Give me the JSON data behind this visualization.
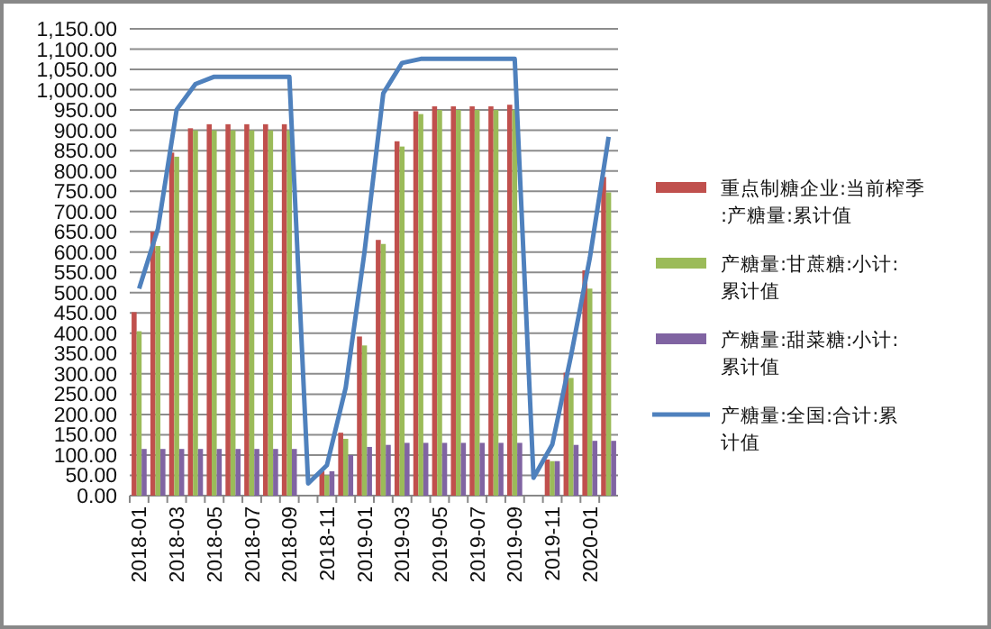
{
  "chart_data": {
    "type": "bar",
    "categories": [
      "2018-01",
      null,
      "2018-03",
      null,
      "2018-05",
      null,
      "2018-07",
      null,
      "2018-09",
      null,
      "2018-11",
      null,
      "2019-01",
      null,
      "2019-03",
      null,
      "2019-05",
      null,
      "2019-07",
      null,
      "2019-09",
      null,
      "2019-11",
      null,
      "2020-01",
      null
    ],
    "series": [
      {
        "name": "重点制糖企业:当前榨季:产糖量:累计值",
        "color": "#c0504d",
        "values": [
          452,
          650,
          845,
          905,
          915,
          915,
          915,
          915,
          915,
          null,
          60,
          155,
          392,
          630,
          873,
          947,
          959,
          959,
          959,
          959,
          963,
          null,
          89,
          303,
          555,
          785
        ]
      },
      {
        "name": "产糖量:甘蔗糖:小计:累计值",
        "color": "#9bbb59",
        "values": [
          405,
          615,
          835,
          900,
          900,
          900,
          900,
          900,
          900,
          null,
          50,
          140,
          370,
          620,
          860,
          940,
          950,
          950,
          950,
          950,
          950,
          null,
          85,
          290,
          510,
          747
        ]
      },
      {
        "name": "产糖量:甜菜糖:小计:累计值",
        "color": "#8064a2",
        "values": [
          115,
          115,
          115,
          115,
          115,
          115,
          115,
          115,
          115,
          null,
          60,
          100,
          120,
          125,
          130,
          130,
          130,
          130,
          130,
          130,
          130,
          null,
          85,
          125,
          135,
          135
        ]
      },
      {
        "name": "产糖量:全国:合计:累计值",
        "color": "#4f81bd",
        "type": "line",
        "values": [
          510,
          657,
          951,
          1014,
          1032,
          1032,
          1032,
          1032,
          1032,
          30,
          75,
          266,
          600,
          991,
          1066,
          1076,
          1076,
          1076,
          1076,
          1076,
          1076,
          44,
          126,
          345,
          586,
          884
        ]
      }
    ],
    "ylim": [
      0,
      1150
    ],
    "yticks": [
      {
        "value": 0,
        "label": "0.00"
      },
      {
        "value": 50,
        "label": "50.00"
      },
      {
        "value": 100,
        "label": "100.00"
      },
      {
        "value": 150,
        "label": "150.00"
      },
      {
        "value": 200,
        "label": "200.00"
      },
      {
        "value": 250,
        "label": "250.00"
      },
      {
        "value": 300,
        "label": "300.00"
      },
      {
        "value": 350,
        "label": "350.00"
      },
      {
        "value": 400,
        "label": "400.00"
      },
      {
        "value": 450,
        "label": "450.00"
      },
      {
        "value": 500,
        "label": "500.00"
      },
      {
        "value": 550,
        "label": "550.00"
      },
      {
        "value": 600,
        "label": "600.00"
      },
      {
        "value": 650,
        "label": "650.00"
      },
      {
        "value": 700,
        "label": "700.00"
      },
      {
        "value": 750,
        "label": "750.00"
      },
      {
        "value": 800,
        "label": "800.00"
      },
      {
        "value": 850,
        "label": "850.00"
      },
      {
        "value": 900,
        "label": "900.00"
      },
      {
        "value": 950,
        "label": "950.00"
      },
      {
        "value": 1000,
        "label": "1,000.00"
      },
      {
        "value": 1050,
        "label": "1,050.00"
      },
      {
        "value": 1100,
        "label": "1,100.00"
      },
      {
        "value": 1150,
        "label": "1,150.00"
      }
    ],
    "grid": "y",
    "legend": "right"
  }
}
